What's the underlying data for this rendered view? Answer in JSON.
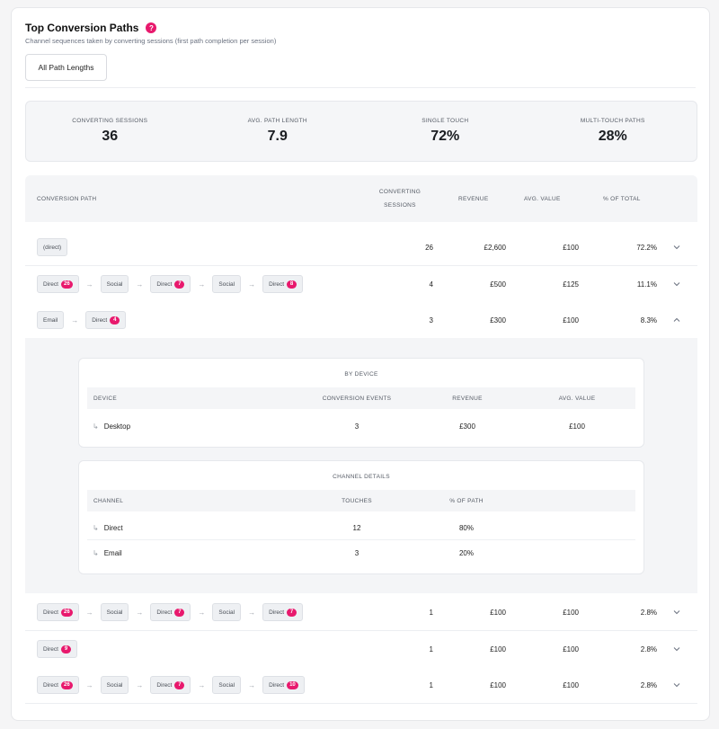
{
  "header": {
    "title": "Top Conversion Paths",
    "help_icon": "?",
    "subtitle": "Channel sequences taken by converting sessions (first path completion per session)",
    "filter_button": "All Path Lengths"
  },
  "stats": [
    {
      "label": "CONVERTING SESSIONS",
      "value": "36"
    },
    {
      "label": "AVG. PATH LENGTH",
      "value": "7.9"
    },
    {
      "label": "SINGLE TOUCH",
      "value": "72%"
    },
    {
      "label": "MULTI-TOUCH PATHS",
      "value": "28%"
    }
  ],
  "table": {
    "headers": {
      "path": "CONVERSION PATH",
      "sessions_1": "CONVERTING",
      "sessions_2": "SESSIONS",
      "revenue": "REVENUE",
      "avg": "AVG. VALUE",
      "pct": "% OF TOTAL"
    },
    "rows": [
      {
        "path": [
          {
            "label": "(direct)",
            "badge": null
          }
        ],
        "sessions": "26",
        "revenue": "£2,600",
        "avg": "£100",
        "pct": "72.2%",
        "expanded": false
      },
      {
        "path": [
          {
            "label": "Direct",
            "badge": "26"
          },
          {
            "label": "Social",
            "badge": null
          },
          {
            "label": "Direct",
            "badge": "7"
          },
          {
            "label": "Social",
            "badge": null
          },
          {
            "label": "Direct",
            "badge": "8"
          }
        ],
        "sessions": "4",
        "revenue": "£500",
        "avg": "£125",
        "pct": "11.1%",
        "expanded": false
      },
      {
        "path": [
          {
            "label": "Email",
            "badge": null
          },
          {
            "label": "Direct",
            "badge": "4"
          }
        ],
        "sessions": "3",
        "revenue": "£300",
        "avg": "£100",
        "pct": "8.3%",
        "expanded": true
      },
      {
        "path": [
          {
            "label": "Direct",
            "badge": "26"
          },
          {
            "label": "Social",
            "badge": null
          },
          {
            "label": "Direct",
            "badge": "7"
          },
          {
            "label": "Social",
            "badge": null
          },
          {
            "label": "Direct",
            "badge": "7"
          }
        ],
        "sessions": "1",
        "revenue": "£100",
        "avg": "£100",
        "pct": "2.8%",
        "expanded": false
      },
      {
        "path": [
          {
            "label": "Direct",
            "badge": "9"
          }
        ],
        "sessions": "1",
        "revenue": "£100",
        "avg": "£100",
        "pct": "2.8%",
        "expanded": false
      },
      {
        "path": [
          {
            "label": "Direct",
            "badge": "26"
          },
          {
            "label": "Social",
            "badge": null
          },
          {
            "label": "Direct",
            "badge": "7"
          },
          {
            "label": "Social",
            "badge": null
          },
          {
            "label": "Direct",
            "badge": "10"
          }
        ],
        "sessions": "1",
        "revenue": "£100",
        "avg": "£100",
        "pct": "2.8%",
        "expanded": false
      }
    ],
    "arrow_glyph": "→"
  },
  "expanded_detail": {
    "by_device": {
      "title": "BY DEVICE",
      "headers": {
        "device": "DEVICE",
        "events": "CONVERSION EVENTS",
        "revenue": "REVENUE",
        "avg": "AVG. VALUE"
      },
      "rows": [
        {
          "device": "Desktop",
          "events": "3",
          "revenue": "£300",
          "avg": "£100"
        }
      ]
    },
    "channel_details": {
      "title": "CHANNEL DETAILS",
      "headers": {
        "channel": "CHANNEL",
        "touches": "TOUCHES",
        "pct": "% OF PATH"
      },
      "rows": [
        {
          "channel": "Direct",
          "touches": "12",
          "pct": "80%"
        },
        {
          "channel": "Email",
          "touches": "3",
          "pct": "20%"
        }
      ]
    },
    "hook_glyph": "↳"
  },
  "colors": {
    "accent": "#e8196d",
    "chip_bg": "#eef0f3",
    "panel_bg": "#f4f5f7"
  },
  "icons": {
    "expand": "chevron-down-icon",
    "collapse": "chevron-up-icon",
    "help": "help-icon"
  }
}
